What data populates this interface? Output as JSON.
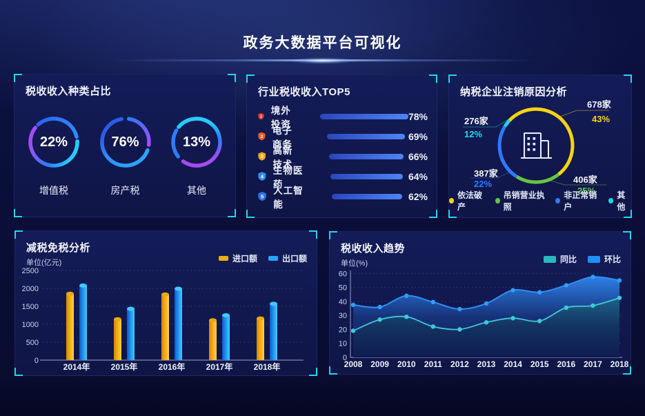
{
  "page": {
    "title": "政务大数据平台可视化"
  },
  "panels": {
    "tax_type": {
      "title": "税收收入种类占比"
    },
    "industry_top5": {
      "title": "行业税收收入TOP5"
    },
    "cancellation": {
      "title": "纳税企业注销原因分析"
    },
    "reduction": {
      "title": "减税免税分析",
      "unit_label": "单位(亿元)"
    },
    "trend": {
      "title": "税收收入趋势",
      "unit_label": "单位(%)"
    }
  },
  "chart_data": [
    {
      "id": "tax-type-share",
      "type": "pie",
      "title": "税收收入种类占比",
      "items": [
        {
          "label": "增值税",
          "value": 22,
          "unit": "%"
        },
        {
          "label": "房产税",
          "value": 76,
          "unit": "%"
        },
        {
          "label": "其他",
          "value": 13,
          "unit": "%"
        }
      ],
      "ring_colors": [
        "#2e7bff",
        "#26ccff",
        "#a44bf5"
      ]
    },
    {
      "id": "industry-top5",
      "type": "bar",
      "title": "行业税收收入TOP5",
      "categories": [
        "境外投资",
        "电子商务",
        "高新技术",
        "生物医药",
        "人工智能"
      ],
      "values": [
        78,
        69,
        66,
        64,
        62
      ],
      "value_unit": "%",
      "ranks": [
        1,
        2,
        3,
        4,
        5
      ],
      "rank_colors": [
        "#e83a30",
        "#f25a23",
        "#f2a51e",
        "#2f8ef2",
        "#2f74e8"
      ],
      "bar_gradient": [
        "#2b46bd",
        "#4d85f7"
      ]
    },
    {
      "id": "cancellation-reasons",
      "type": "pie",
      "title": "纳税企业注销原因分析",
      "segments": [
        {
          "label": "依法破产",
          "count": "678家",
          "pct": 43,
          "color": "#f5d312"
        },
        {
          "label": "吊销营业执照",
          "count": "406家",
          "pct": 25,
          "color": "#66c544"
        },
        {
          "label": "非正常销户",
          "count": "387家",
          "pct": 22,
          "color": "#2e7bff"
        },
        {
          "label": "其他",
          "count": "276家",
          "pct": 12,
          "color": "#1fd8e8"
        }
      ]
    },
    {
      "id": "tax-reduction",
      "type": "bar",
      "title": "减税免税分析",
      "unit_label": "单位(亿元)",
      "categories": [
        "2014年",
        "2015年",
        "2016年",
        "2017年",
        "2018年"
      ],
      "series": [
        {
          "name": "进口额",
          "color": "#eead1c",
          "values": [
            1850,
            1140,
            1830,
            1110,
            1160
          ]
        },
        {
          "name": "出口额",
          "color": "#27a6f5",
          "values": [
            2080,
            1430,
            1990,
            1250,
            1570
          ]
        }
      ],
      "ylim": [
        0,
        2500
      ],
      "yticks": [
        0,
        500,
        1000,
        1500,
        2000,
        2500
      ],
      "legend_position": "top-right",
      "grid": "dotted"
    },
    {
      "id": "tax-trend",
      "type": "area",
      "title": "税收收入趋势",
      "unit_label": "单位(%)",
      "x": [
        "2008",
        "2009",
        "2010",
        "2011",
        "2012",
        "2013",
        "2014",
        "2015",
        "2016",
        "2017",
        "2018"
      ],
      "series": [
        {
          "name": "同比",
          "color": "#2bb7c0",
          "values": [
            19,
            27,
            29,
            22,
            20,
            25,
            28,
            26,
            35.5,
            37,
            42.5
          ]
        },
        {
          "name": "环比",
          "color": "#1e90ff",
          "values": [
            37.5,
            36,
            44,
            39.5,
            34.5,
            38.5,
            48,
            46.5,
            51.5,
            57.5,
            55
          ]
        }
      ],
      "ylim": [
        0,
        60
      ],
      "yticks": [
        0,
        10,
        20,
        30,
        40,
        50,
        60
      ],
      "legend_position": "top-right",
      "grid": "dotted"
    }
  ]
}
